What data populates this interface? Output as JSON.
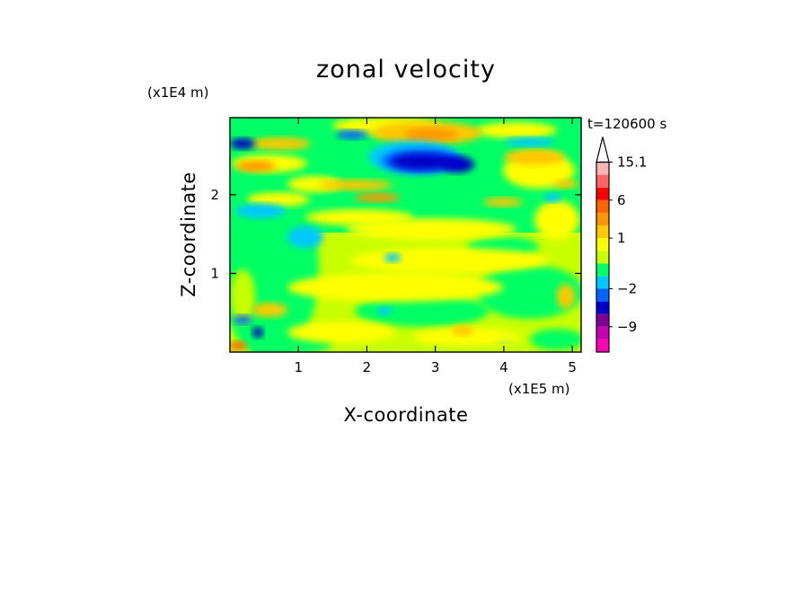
{
  "chart_data": {
    "type": "heatmap",
    "title": "zonal velocity",
    "xlabel": "X-coordinate",
    "ylabel": "Z-coordinate",
    "x_scale_label": "(x1E5 m)",
    "y_scale_label": "(x1E4 m)",
    "time_label": "t=120600 s",
    "xlim": [
      0,
      5.13
    ],
    "ylim": [
      0,
      2.98
    ],
    "x_ticks": [
      {
        "value": 1,
        "label": "1"
      },
      {
        "value": 2,
        "label": "2"
      },
      {
        "value": 3,
        "label": "3"
      },
      {
        "value": 4,
        "label": "4"
      },
      {
        "value": 5,
        "label": "5"
      }
    ],
    "y_ticks": [
      {
        "value": 1,
        "label": "1"
      },
      {
        "value": 2,
        "label": "2"
      }
    ],
    "colorbar": {
      "colors": [
        "#ff00b4",
        "#c800b4",
        "#800096",
        "#0000c8",
        "#0064ff",
        "#00c8ff",
        "#00ff64",
        "#c8ff00",
        "#ffff00",
        "#ffc800",
        "#ff9600",
        "#ff6400",
        "#ff0000",
        "#ff6464",
        "#ffb4b4"
      ],
      "labels": [
        {
          "value": 15.1,
          "label": "15.1"
        },
        {
          "value": 6,
          "label": "6"
        },
        {
          "value": 1,
          "label": "1"
        },
        {
          "value": -2,
          "label": "−2"
        },
        {
          "value": -9,
          "label": "−9"
        }
      ],
      "extend": "max"
    },
    "grid": false
  }
}
